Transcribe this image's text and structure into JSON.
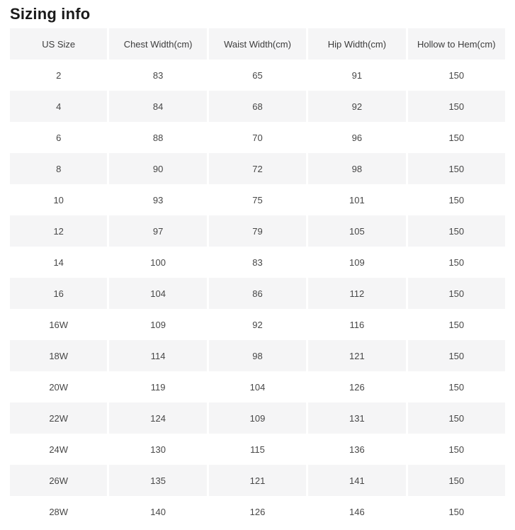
{
  "page": {
    "title": "Sizing info"
  },
  "table": {
    "columns": [
      "US Size",
      "Chest Width(cm)",
      "Waist Width(cm)",
      "Hip Width(cm)",
      "Hollow to Hem(cm)"
    ],
    "rows": [
      [
        "2",
        "83",
        "65",
        "91",
        "150"
      ],
      [
        "4",
        "84",
        "68",
        "92",
        "150"
      ],
      [
        "6",
        "88",
        "70",
        "96",
        "150"
      ],
      [
        "8",
        "90",
        "72",
        "98",
        "150"
      ],
      [
        "10",
        "93",
        "75",
        "101",
        "150"
      ],
      [
        "12",
        "97",
        "79",
        "105",
        "150"
      ],
      [
        "14",
        "100",
        "83",
        "109",
        "150"
      ],
      [
        "16",
        "104",
        "86",
        "112",
        "150"
      ],
      [
        "16W",
        "109",
        "92",
        "116",
        "150"
      ],
      [
        "18W",
        "114",
        "98",
        "121",
        "150"
      ],
      [
        "20W",
        "119",
        "104",
        "126",
        "150"
      ],
      [
        "22W",
        "124",
        "109",
        "131",
        "150"
      ],
      [
        "24W",
        "130",
        "115",
        "136",
        "150"
      ],
      [
        "26W",
        "135",
        "121",
        "141",
        "150"
      ],
      [
        "28W",
        "140",
        "126",
        "146",
        "150"
      ]
    ],
    "colors": {
      "shaded_row_bg": "#f5f5f6",
      "cell_text": "#474747",
      "title_text": "#1a1a1a"
    }
  }
}
